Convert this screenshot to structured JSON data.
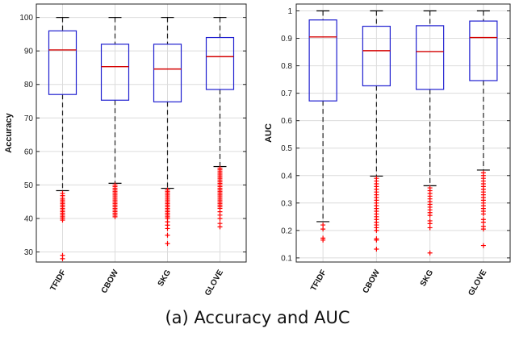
{
  "caption": "(a) Accuracy and AUC",
  "colors": {
    "box": "#1f1fd0",
    "median": "#d40000",
    "outlier": "#ff0000",
    "whisker": "#222222",
    "grid": "#dcdcdc"
  },
  "chart_data": [
    {
      "type": "box",
      "title": "",
      "xlabel": "",
      "ylabel": "Accuracy",
      "ylim": [
        27,
        104
      ],
      "yticks": [
        "30",
        "40",
        "50",
        "60",
        "70",
        "80",
        "90",
        "100"
      ],
      "grid": true,
      "categories": [
        "TFIDF",
        "CBOW",
        "SKG",
        "GLOVE"
      ],
      "boxes": [
        {
          "category": "TFIDF",
          "whisker_low": 48.3,
          "q1": 77.0,
          "median": 90.3,
          "q3": 96.0,
          "whisker_high": 100,
          "outliers": [
            47.5,
            46.8,
            46.0,
            45.5,
            45.0,
            44.5,
            44.0,
            43.5,
            43.0,
            42.5,
            42.0,
            41.5,
            41.0,
            40.5,
            40.0,
            39.5,
            29.0,
            28.0
          ]
        },
        {
          "category": "CBOW",
          "whisker_low": 50.5,
          "q1": 75.3,
          "median": 85.3,
          "q3": 92.0,
          "whisker_high": 100,
          "outliers": [
            50.0,
            49.5,
            49.0,
            48.5,
            48.0,
            47.5,
            47.0,
            46.5,
            46.0,
            45.5,
            45.0,
            44.5,
            44.0,
            43.5,
            43.0,
            42.5,
            42.0,
            41.5,
            41.0,
            40.5
          ]
        },
        {
          "category": "SKG",
          "whisker_low": 49.0,
          "q1": 74.8,
          "median": 84.6,
          "q3": 92.0,
          "whisker_high": 100,
          "outliers": [
            48.5,
            48.0,
            47.5,
            47.0,
            46.5,
            46.0,
            45.5,
            45.0,
            44.5,
            44.0,
            43.5,
            43.0,
            42.5,
            42.0,
            41.5,
            41.0,
            40.5,
            40.0,
            39.0,
            38.0,
            37.0,
            35.0,
            32.5
          ]
        },
        {
          "category": "GLOVE",
          "whisker_low": 55.5,
          "q1": 78.5,
          "median": 88.3,
          "q3": 94.0,
          "whisker_high": 100,
          "outliers": [
            55.0,
            54.5,
            54.0,
            53.5,
            53.0,
            52.5,
            52.0,
            51.5,
            51.0,
            50.5,
            50.0,
            49.5,
            49.0,
            48.5,
            48.0,
            47.5,
            47.0,
            46.5,
            46.0,
            45.5,
            45.0,
            44.5,
            44.0,
            43.5,
            43.0,
            42.0,
            41.0,
            40.0,
            38.5,
            37.5
          ]
        }
      ]
    },
    {
      "type": "box",
      "title": "",
      "xlabel": "",
      "ylabel": "AUC",
      "ylim": [
        0.085,
        1.025
      ],
      "yticks": [
        "0.1",
        "0.2",
        "0.3",
        "0.4",
        "0.5",
        "0.6",
        "0.7",
        "0.8",
        "0.9",
        "1"
      ],
      "grid": true,
      "categories": [
        "TFIDF",
        "CBOW",
        "SKG",
        "GLOVE"
      ],
      "boxes": [
        {
          "category": "TFIDF",
          "whisker_low": 0.232,
          "q1": 0.672,
          "median": 0.905,
          "q3": 0.967,
          "whisker_high": 1.0,
          "outliers": [
            0.22,
            0.205,
            0.172,
            0.165
          ]
        },
        {
          "category": "CBOW",
          "whisker_low": 0.398,
          "q1": 0.727,
          "median": 0.855,
          "q3": 0.944,
          "whisker_high": 1.0,
          "outliers": [
            0.39,
            0.38,
            0.37,
            0.36,
            0.35,
            0.34,
            0.33,
            0.32,
            0.31,
            0.3,
            0.29,
            0.28,
            0.27,
            0.26,
            0.25,
            0.24,
            0.23,
            0.22,
            0.21,
            0.2,
            0.17,
            0.165,
            0.132
          ]
        },
        {
          "category": "SKG",
          "whisker_low": 0.363,
          "q1": 0.714,
          "median": 0.852,
          "q3": 0.946,
          "whisker_high": 1.0,
          "outliers": [
            0.355,
            0.345,
            0.335,
            0.325,
            0.315,
            0.305,
            0.295,
            0.285,
            0.275,
            0.265,
            0.255,
            0.235,
            0.225,
            0.21,
            0.118
          ]
        },
        {
          "category": "GLOVE",
          "whisker_low": 0.42,
          "q1": 0.746,
          "median": 0.903,
          "q3": 0.963,
          "whisker_high": 1.0,
          "outliers": [
            0.41,
            0.4,
            0.39,
            0.38,
            0.37,
            0.36,
            0.35,
            0.34,
            0.33,
            0.32,
            0.31,
            0.3,
            0.29,
            0.28,
            0.27,
            0.26,
            0.24,
            0.23,
            0.215,
            0.205,
            0.145
          ]
        }
      ]
    }
  ]
}
